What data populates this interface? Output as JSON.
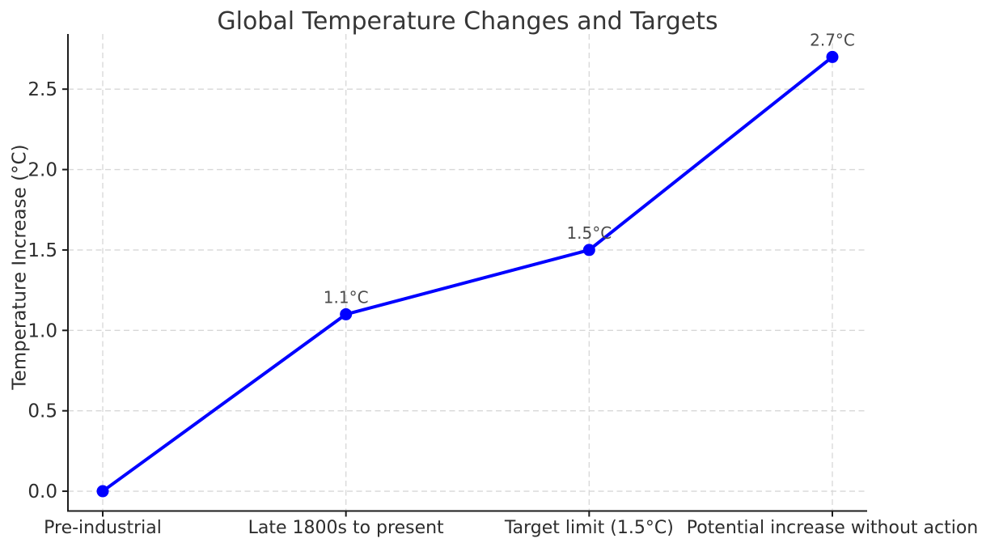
{
  "figure": {
    "background": "#ffffff"
  },
  "chart_data": {
    "type": "line",
    "title": "Global Temperature Changes and Targets",
    "xlabel": "",
    "ylabel": "Temperature Increase (°C)",
    "categories": [
      "Pre-industrial",
      "Late 1800s to present",
      "Target limit (1.5°C)",
      "Potential increase without action"
    ],
    "series": [
      {
        "name": "Temperature Increase",
        "values": [
          0.0,
          1.1,
          1.5,
          2.7
        ],
        "point_labels": [
          "",
          "1.1°C",
          "1.5°C",
          "2.7°C"
        ]
      }
    ],
    "yticks": [
      0.0,
      0.5,
      1.0,
      1.5,
      2.0,
      2.5
    ],
    "ytick_labels": [
      "0.0",
      "0.5",
      "1.0",
      "1.5",
      "2.0",
      "2.5"
    ],
    "ylim": [
      -0.123,
      2.843
    ],
    "grid": true,
    "grid_style": "dashed",
    "legend": "none",
    "colors": {
      "line": "#0000ff",
      "marker": "#0000ff",
      "grid": "#d7d7d7",
      "axis": "#1c1c1c",
      "tick_label": "#2d2d2d",
      "title": "#363636",
      "annotation": "#4a4a4a",
      "background": "#ffffff"
    }
  }
}
